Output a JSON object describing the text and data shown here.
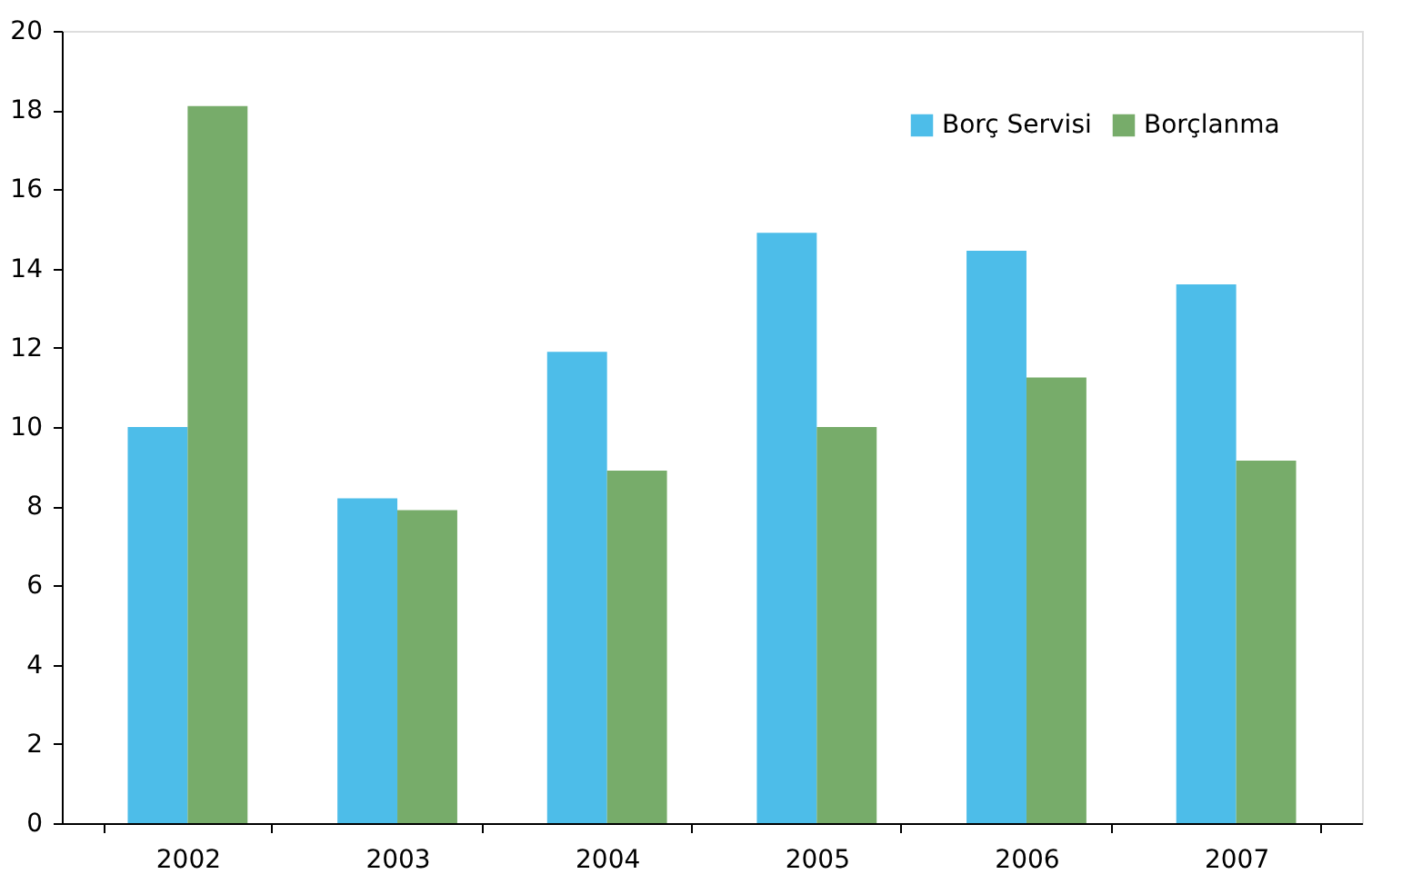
{
  "chart_data": {
    "type": "bar",
    "categories": [
      "2002",
      "2003",
      "2004",
      "2005",
      "2006",
      "2007"
    ],
    "series": [
      {
        "name": "Borç Servisi",
        "color": "#4dbde9",
        "values": [
          10.0,
          8.2,
          11.9,
          14.9,
          14.45,
          13.6
        ]
      },
      {
        "name": "Borçlanma",
        "color": "#77ac6a",
        "values": [
          18.1,
          7.9,
          8.9,
          10.0,
          11.25,
          9.15
        ]
      }
    ],
    "ylim": [
      0,
      20
    ],
    "yticks": [
      0,
      2,
      4,
      6,
      8,
      10,
      12,
      14,
      16,
      18,
      20
    ],
    "grid": false,
    "legend": "top right"
  }
}
